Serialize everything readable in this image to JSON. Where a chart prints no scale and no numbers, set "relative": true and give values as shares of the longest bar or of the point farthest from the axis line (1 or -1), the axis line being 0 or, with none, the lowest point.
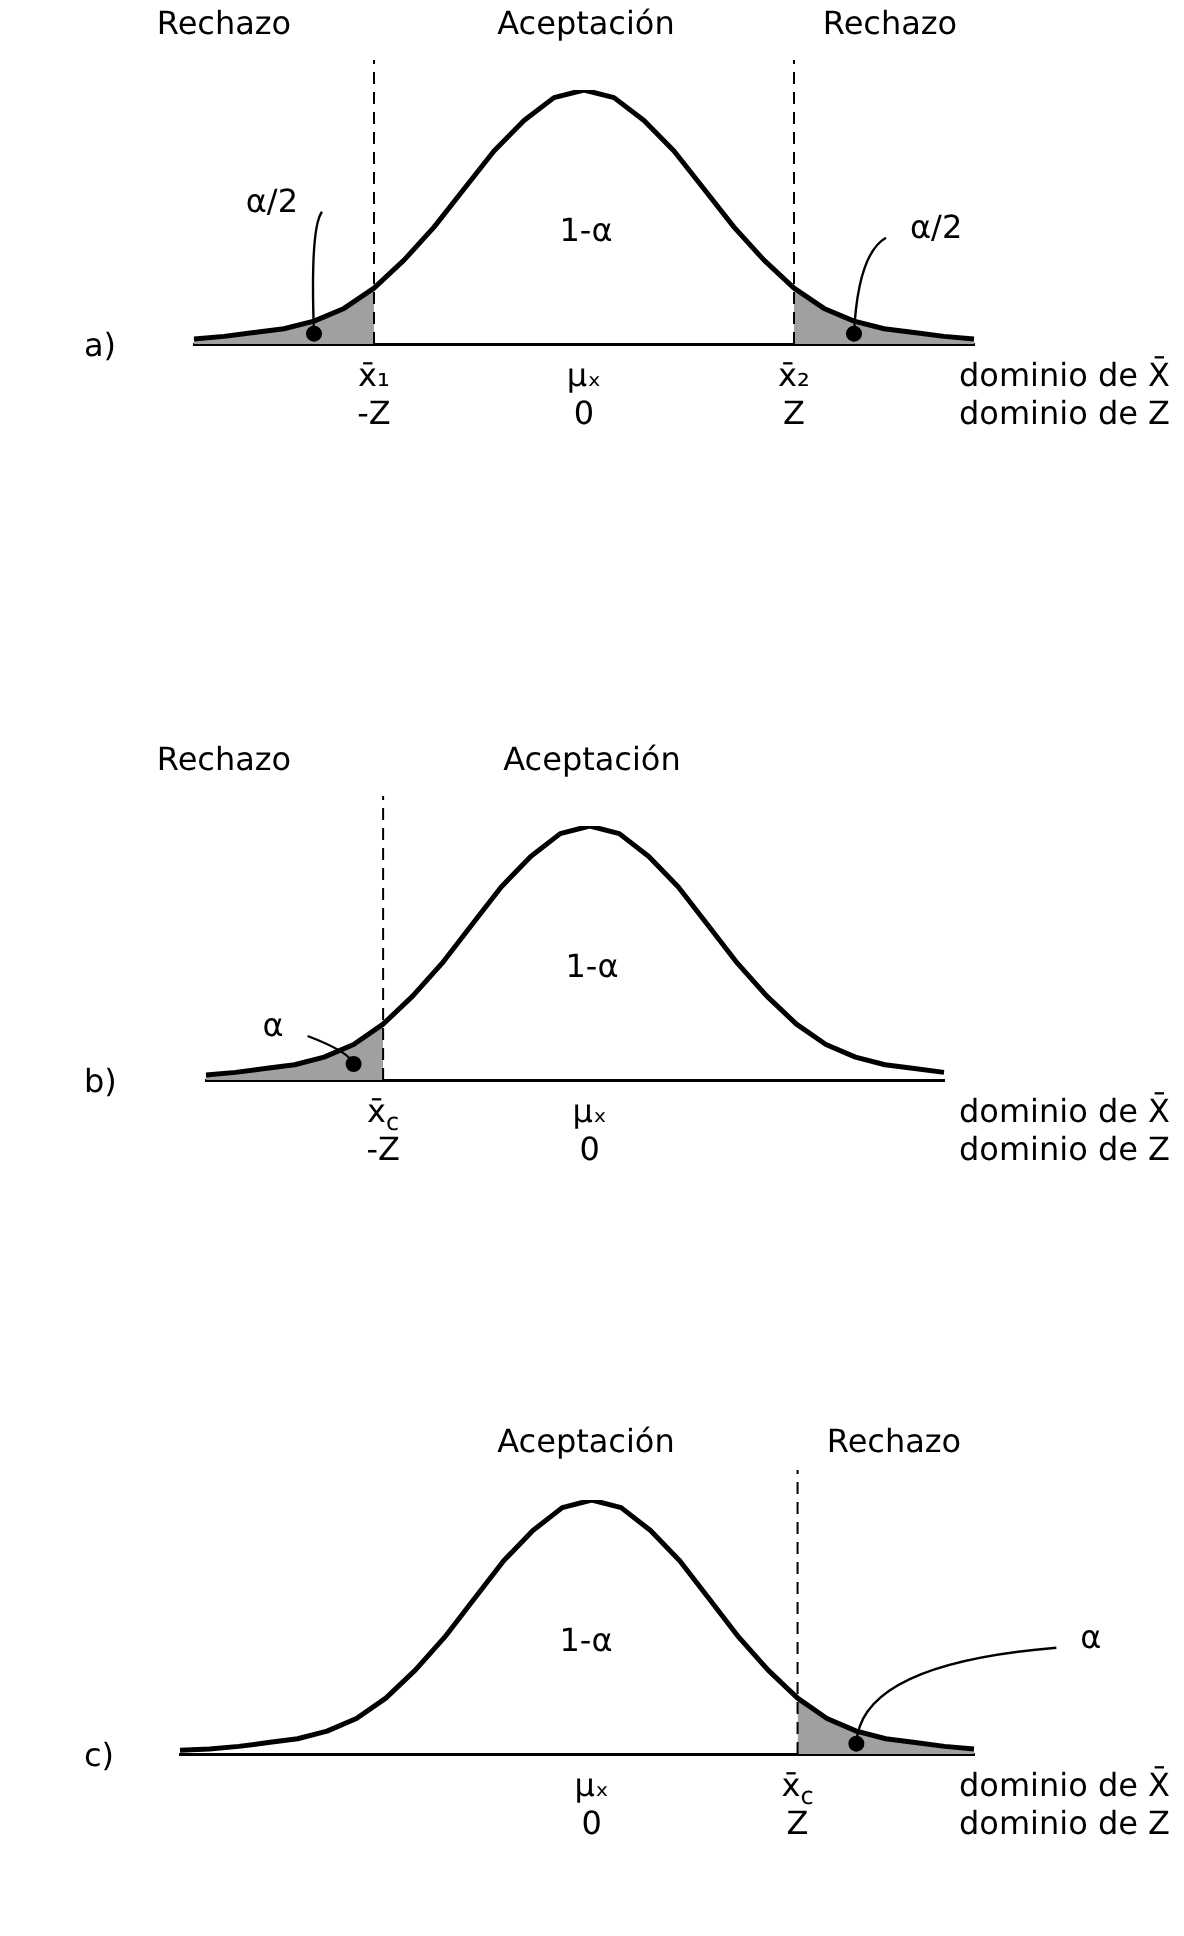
{
  "chart_data": [
    {
      "type": "line",
      "title": "a)",
      "relative": true,
      "xlabel": "dominio de X̄\ndominio de Z",
      "categories": [
        null,
        null,
        null,
        null,
        null,
        null,
        "x̄₁\n-Z",
        null,
        null,
        null,
        null,
        null,
        null,
        "μₓ\n0",
        null,
        null,
        null,
        null,
        null,
        null,
        "x̄₂\nZ",
        null,
        null,
        null,
        null,
        null,
        null
      ],
      "series": [
        {
          "type": "line",
          "color": "#000000",
          "values": [
            0.02,
            0.03,
            0.045,
            0.06,
            0.09,
            0.14,
            0.22,
            0.33,
            0.46,
            0.61,
            0.76,
            0.88,
            0.97,
            1,
            0.97,
            0.88,
            0.76,
            0.61,
            0.46,
            0.33,
            0.22,
            0.14,
            0.09,
            0.06,
            0.045,
            0.03,
            0.02
          ]
        },
        {
          "type": "area",
          "color": "#a0a0a0",
          "values": [
            0.02,
            0.03,
            0.045,
            0.06,
            0.09,
            0.14,
            0.22,
            null,
            null,
            null,
            null,
            null,
            null,
            null,
            null,
            null,
            null,
            null,
            null,
            null,
            null,
            null,
            null,
            null,
            null,
            null,
            null
          ]
        },
        {
          "type": "area",
          "color": "#a0a0a0",
          "values": [
            null,
            null,
            null,
            null,
            null,
            null,
            null,
            null,
            null,
            null,
            null,
            null,
            null,
            null,
            null,
            null,
            null,
            null,
            null,
            null,
            0.22,
            0.14,
            0.09,
            0.06,
            0.045,
            0.03,
            0.02
          ]
        }
      ],
      "ref_lines": [
        {
          "axis": "x",
          "value": "x̄₁\n-Z",
          "line_style": "dashed"
        },
        {
          "axis": "x",
          "value": "x̄₂\nZ",
          "line_style": "dashed"
        }
      ],
      "annotations": [
        "Rechazo",
        "Aceptación",
        "Rechazo",
        "1-α",
        "α/2",
        "α/2"
      ]
    },
    {
      "type": "line",
      "title": "b)",
      "relative": true,
      "xlabel": "dominio de X̄\ndominio de Z",
      "categories": [
        null,
        null,
        null,
        null,
        null,
        null,
        "x̄$_{c}$\n-Z",
        null,
        null,
        null,
        null,
        null,
        null,
        "μₓ\n0",
        null,
        null,
        null,
        null,
        null,
        null,
        null,
        null,
        null,
        null,
        null,
        null
      ],
      "series": [
        {
          "type": "line",
          "color": "#000000",
          "values": [
            0.02,
            0.03,
            0.045,
            0.06,
            0.09,
            0.14,
            0.22,
            0.33,
            0.46,
            0.61,
            0.76,
            0.88,
            0.97,
            1,
            0.97,
            0.88,
            0.76,
            0.61,
            0.46,
            0.33,
            0.22,
            0.14,
            0.09,
            0.06,
            0.045,
            0.03
          ]
        },
        {
          "type": "area",
          "color": "#a0a0a0",
          "values": [
            0.02,
            0.03,
            0.045,
            0.06,
            0.09,
            0.14,
            0.22,
            null,
            null,
            null,
            null,
            null,
            null,
            null,
            null,
            null,
            null,
            null,
            null,
            null,
            null,
            null,
            null,
            null,
            null,
            null
          ]
        }
      ],
      "ref_lines": [
        {
          "axis": "x",
          "value": "x̄$_{c}$\n-Z",
          "line_style": "dashed"
        }
      ],
      "annotations": [
        "Rechazo",
        "Aceptación",
        "1-α",
        "α"
      ]
    },
    {
      "type": "line",
      "title": "c)",
      "relative": true,
      "xlabel": "dominio de X̄\ndominio de Z",
      "categories": [
        null,
        null,
        null,
        null,
        null,
        null,
        null,
        null,
        null,
        null,
        null,
        null,
        null,
        null,
        "μₓ\n0",
        null,
        null,
        null,
        null,
        null,
        null,
        "x̄$_{c}$\nZ",
        null,
        null,
        null,
        null,
        null,
        null
      ],
      "series": [
        {
          "type": "line",
          "color": "#000000",
          "values": [
            0.015,
            0.02,
            0.03,
            0.045,
            0.06,
            0.09,
            0.14,
            0.22,
            0.33,
            0.46,
            0.61,
            0.76,
            0.88,
            0.97,
            1,
            0.97,
            0.88,
            0.76,
            0.61,
            0.46,
            0.33,
            0.22,
            0.14,
            0.09,
            0.06,
            0.045,
            0.03,
            0.02
          ]
        },
        {
          "type": "area",
          "color": "#a0a0a0",
          "values": [
            null,
            null,
            null,
            null,
            null,
            null,
            null,
            null,
            null,
            null,
            null,
            null,
            null,
            null,
            null,
            null,
            null,
            null,
            null,
            null,
            null,
            0.22,
            0.14,
            0.09,
            0.06,
            0.045,
            0.03,
            0.02
          ]
        }
      ],
      "ref_lines": [
        {
          "axis": "x",
          "value": "x̄$_{c}$\nZ",
          "line_style": "dashed"
        }
      ],
      "annotations": [
        "Aceptación",
        "Rechazo",
        "1-α",
        "α"
      ]
    }
  ]
}
